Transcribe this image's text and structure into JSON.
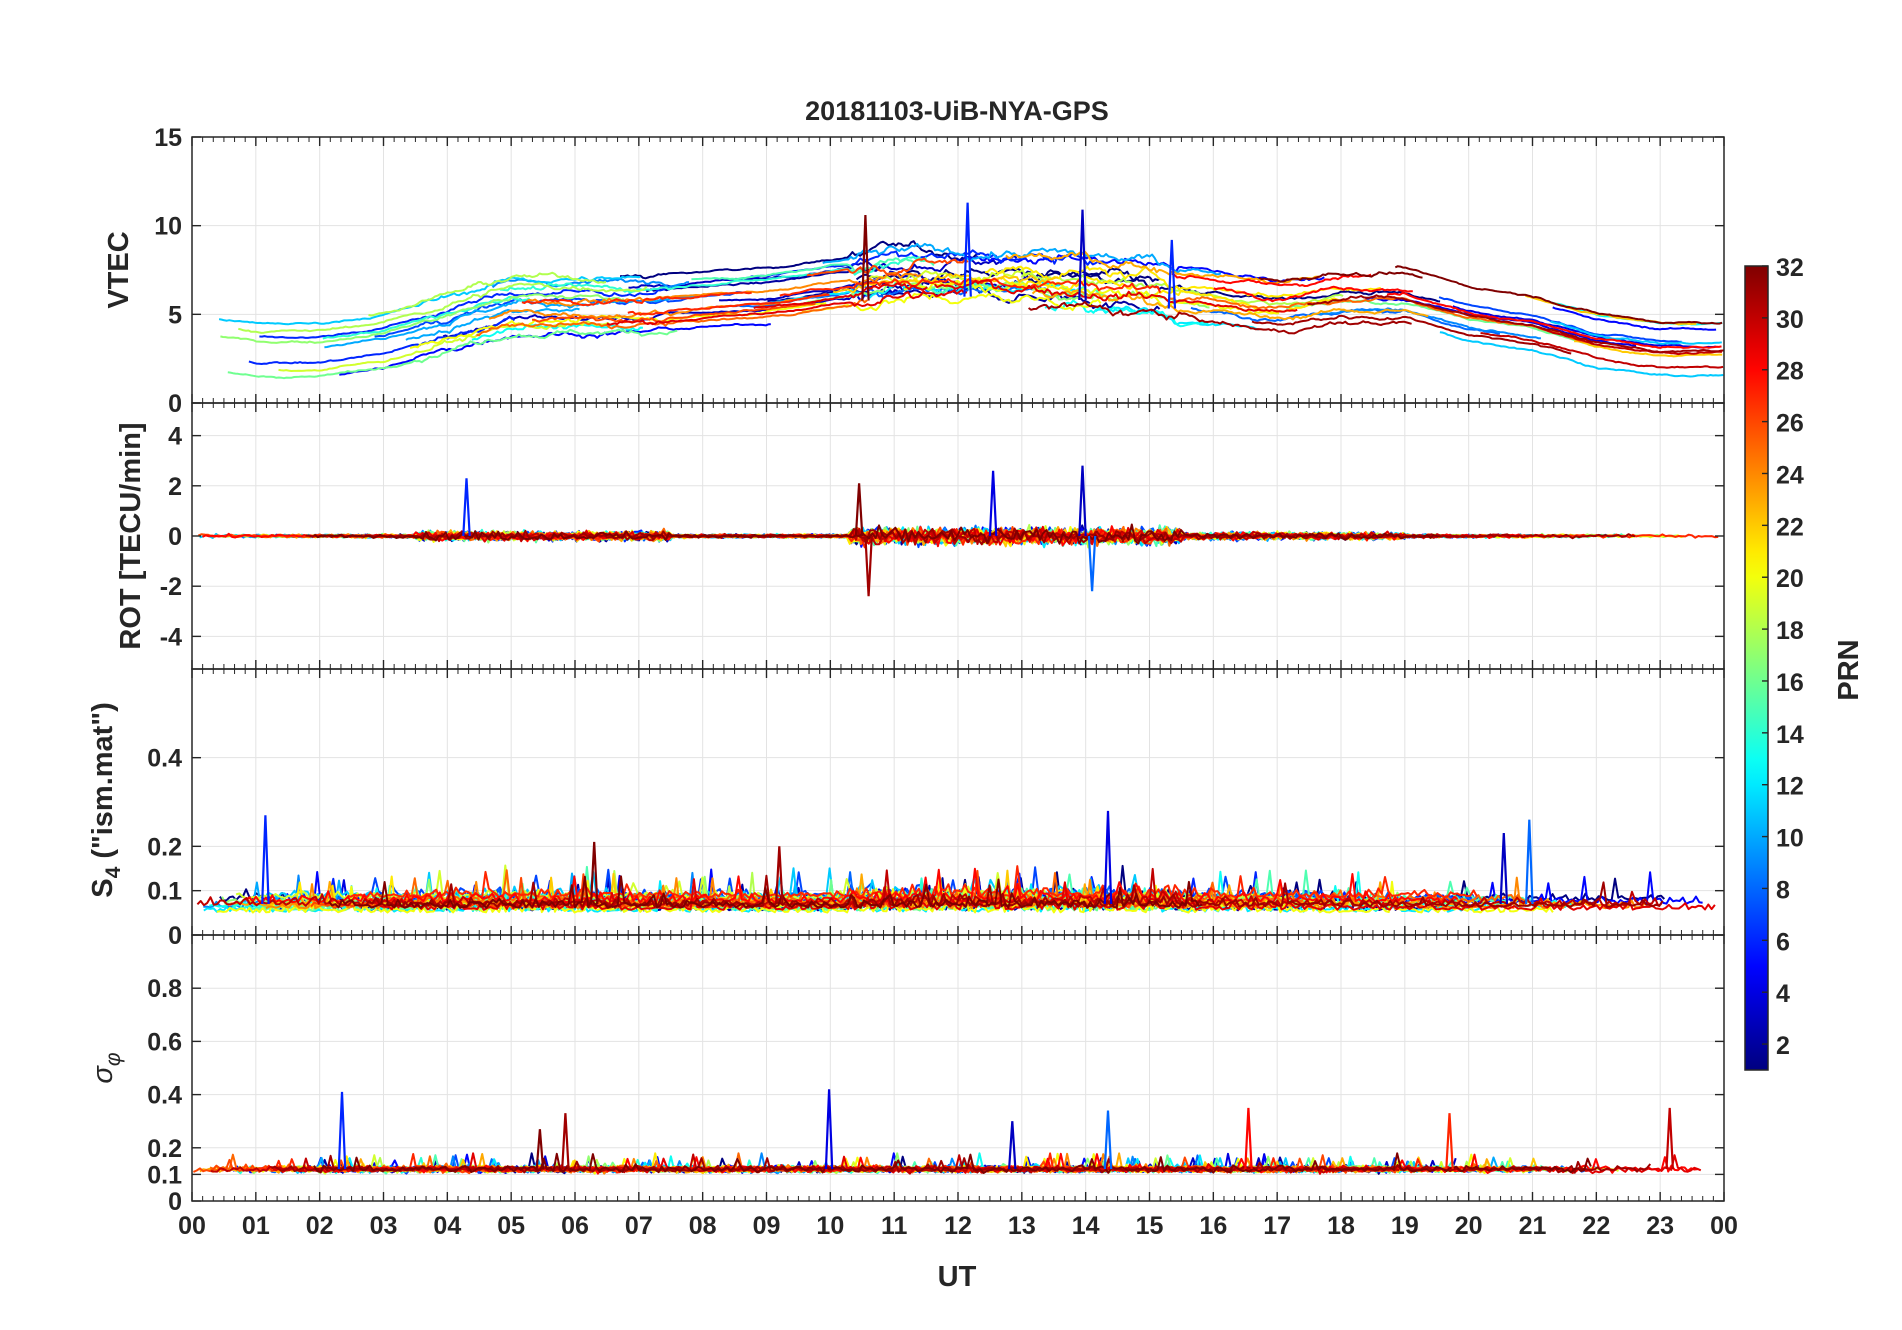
{
  "figure": {
    "title": "20181103-UiB-NYA-GPS",
    "xlabel": "UT",
    "x_tick_labels": [
      "00",
      "01",
      "02",
      "03",
      "04",
      "05",
      "06",
      "07",
      "08",
      "09",
      "10",
      "11",
      "12",
      "13",
      "14",
      "15",
      "16",
      "17",
      "18",
      "19",
      "20",
      "21",
      "22",
      "23",
      "00"
    ]
  },
  "colorbar": {
    "label": "PRN",
    "range": [
      1,
      32
    ],
    "tick_labels": [
      "2",
      "4",
      "6",
      "8",
      "10",
      "12",
      "14",
      "16",
      "18",
      "20",
      "22",
      "24",
      "26",
      "28",
      "30",
      "32"
    ],
    "tick_values": [
      2,
      4,
      6,
      8,
      10,
      12,
      14,
      16,
      18,
      20,
      22,
      24,
      26,
      28,
      30,
      32
    ],
    "colormap": "jet",
    "colors": [
      "#00008f",
      "#0000ff",
      "#007fff",
      "#00ffff",
      "#7fff7f",
      "#ffff00",
      "#ff7f00",
      "#ff0000",
      "#7f0000"
    ]
  },
  "chart_data": [
    {
      "type": "line",
      "panel": "vtec",
      "ylabel": "VTEC",
      "xlim": [
        0,
        24
      ],
      "ylim": [
        0,
        15
      ],
      "y_tick_labels": [
        "0",
        "5",
        "10",
        "15"
      ],
      "y_tick_values": [
        0,
        5,
        10,
        15
      ],
      "grid": true,
      "series_note": "one line per satellite PRN 1–32, colored by PRN",
      "envelope": {
        "x": [
          0,
          1,
          2,
          3,
          4,
          5,
          6,
          7,
          8,
          9,
          10,
          11,
          12,
          13,
          14,
          15,
          16,
          17,
          18,
          19,
          20,
          21,
          22,
          23,
          24
        ],
        "mean": [
          3.5,
          3.0,
          3.0,
          3.5,
          4.5,
          5.5,
          5.5,
          5.5,
          5.8,
          6.0,
          6.5,
          7.0,
          7.0,
          7.0,
          6.8,
          6.5,
          6.0,
          5.5,
          6.0,
          6.0,
          5.0,
          4.5,
          3.5,
          3.0,
          3.0
        ]
      },
      "peaks": [
        {
          "x": 10.55,
          "y": 10.6
        },
        {
          "x": 12.15,
          "y": 11.3
        },
        {
          "x": 13.95,
          "y": 10.9
        },
        {
          "x": 15.35,
          "y": 9.2
        }
      ]
    },
    {
      "type": "line",
      "panel": "rot",
      "ylabel": "ROT [TECU/min]",
      "xlim": [
        0,
        24
      ],
      "ylim": [
        -5.3,
        5.3
      ],
      "y_tick_labels": [
        "-4",
        "-2",
        "0",
        "2",
        "4"
      ],
      "y_tick_values": [
        -4,
        -2,
        0,
        2,
        4
      ],
      "grid": true,
      "series_note": "one line per satellite PRN 1–32, colored by PRN",
      "spikes": [
        {
          "x": 4.3,
          "y": 2.3
        },
        {
          "x": 10.45,
          "y": 2.1
        },
        {
          "x": 10.6,
          "y": -2.4
        },
        {
          "x": 12.55,
          "y": 2.6
        },
        {
          "x": 13.95,
          "y": 2.8
        },
        {
          "x": 14.1,
          "y": -2.2
        }
      ]
    },
    {
      "type": "line",
      "panel": "s4",
      "ylabel": "S4 (\"ism.mat\")",
      "ylabel_main": "S",
      "ylabel_sub": "4",
      "ylabel_suffix": " (\"ism.mat\")",
      "xlim": [
        0,
        24
      ],
      "ylim": [
        0,
        0.6
      ],
      "y_tick_labels": [
        "0",
        "0.1",
        "0.2",
        "0.4"
      ],
      "y_tick_values": [
        0,
        0.1,
        0.2,
        0.4
      ],
      "grid": true,
      "series_note": "one line per satellite PRN 1–32, colored by PRN",
      "spikes": [
        {
          "x": 1.15,
          "y": 0.27
        },
        {
          "x": 6.3,
          "y": 0.21
        },
        {
          "x": 9.2,
          "y": 0.2
        },
        {
          "x": 14.35,
          "y": 0.28
        },
        {
          "x": 20.55,
          "y": 0.23
        },
        {
          "x": 20.95,
          "y": 0.26
        }
      ]
    },
    {
      "type": "line",
      "panel": "sigma_phi",
      "ylabel": "σ_φ",
      "ylabel_main": "σ",
      "ylabel_sub": "φ",
      "xlim": [
        0,
        24
      ],
      "ylim": [
        0,
        1
      ],
      "y_tick_labels": [
        "0",
        "0.1",
        "0.2",
        "0.4",
        "0.6",
        "0.8"
      ],
      "y_tick_values": [
        0,
        0.1,
        0.2,
        0.4,
        0.6,
        0.8
      ],
      "grid": true,
      "series_note": "one line per satellite PRN 1–32, colored by PRN",
      "spikes": [
        {
          "x": 2.35,
          "y": 0.41
        },
        {
          "x": 5.45,
          "y": 0.27
        },
        {
          "x": 5.85,
          "y": 0.33
        },
        {
          "x": 9.98,
          "y": 0.42
        },
        {
          "x": 12.85,
          "y": 0.3
        },
        {
          "x": 14.35,
          "y": 0.34
        },
        {
          "x": 16.55,
          "y": 0.35
        },
        {
          "x": 19.7,
          "y": 0.33
        },
        {
          "x": 23.15,
          "y": 0.35
        }
      ]
    }
  ]
}
